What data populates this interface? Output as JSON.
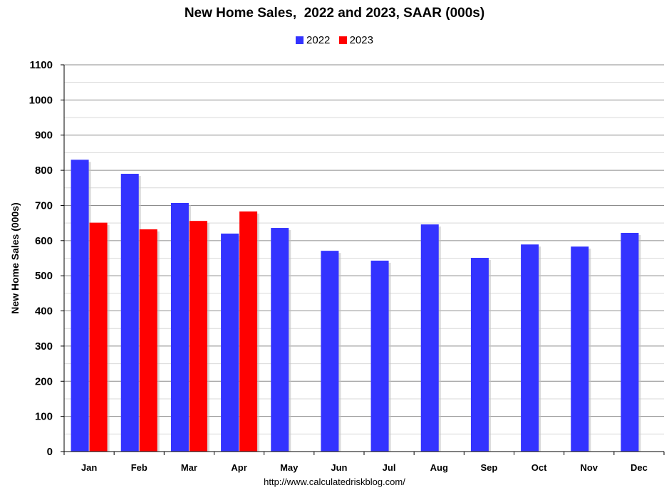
{
  "chart_data": {
    "type": "bar",
    "title": "New Home Sales,  2022 and 2023, SAAR (000s)",
    "ylabel": "New Home Sales (000s)",
    "xlabel": "",
    "categories": [
      "Jan",
      "Feb",
      "Mar",
      "Apr",
      "May",
      "Jun",
      "Jul",
      "Aug",
      "Sep",
      "Oct",
      "Nov",
      "Dec"
    ],
    "series": [
      {
        "name": "2022",
        "color": "#3333ff",
        "values": [
          830,
          790,
          707,
          620,
          636,
          571,
          543,
          646,
          551,
          589,
          583,
          622
        ]
      },
      {
        "name": "2023",
        "color": "#ff0000",
        "values": [
          651,
          632,
          656,
          683,
          null,
          null,
          null,
          null,
          null,
          null,
          null,
          null
        ]
      }
    ],
    "ylim": [
      0,
      1100
    ],
    "y_ticks": [
      0,
      100,
      200,
      300,
      400,
      500,
      600,
      700,
      800,
      900,
      1000,
      1100
    ],
    "grid": true,
    "legend_position": "top-center"
  },
  "source": "http://www.calculatedriskblog.com/"
}
